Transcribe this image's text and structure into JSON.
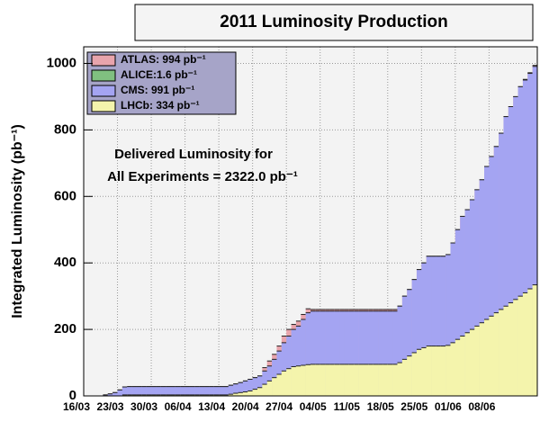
{
  "chart_data": {
    "type": "overlaid-step-area",
    "title": "2011 Luminosity Production",
    "y_label": "Integrated Luminosity (pb⁻¹)",
    "annotation": [
      "Delivered Luminosity for",
      "All Experiments = 2322.0 pb⁻¹"
    ],
    "categories": [
      "16/03",
      null,
      null,
      null,
      null,
      null,
      null,
      "23/03",
      null,
      null,
      null,
      null,
      null,
      null,
      "30/03",
      null,
      null,
      null,
      null,
      null,
      null,
      "06/04",
      null,
      null,
      null,
      null,
      null,
      null,
      "13/04",
      null,
      null,
      null,
      null,
      null,
      null,
      "20/04",
      null,
      null,
      null,
      null,
      null,
      null,
      "27/04",
      null,
      null,
      null,
      null,
      null,
      null,
      "04/05",
      null,
      null,
      null,
      null,
      null,
      null,
      "11/05",
      null,
      null,
      null,
      null,
      null,
      null,
      "18/05",
      null,
      null,
      null,
      null,
      null,
      null,
      "25/05",
      null,
      null,
      null,
      null,
      null,
      null,
      "01/06",
      null,
      null,
      null,
      null,
      null,
      null,
      "08/06",
      null,
      null,
      null,
      null,
      null,
      null,
      null,
      null,
      null
    ],
    "series": [
      {
        "name": "ATLAS: 994 pb⁻¹",
        "color": "#e8a4ac",
        "values": [
          0,
          0,
          0,
          0,
          3,
          6,
          10,
          18,
          27,
          28,
          28,
          28,
          28,
          28,
          28,
          28,
          28,
          28,
          28,
          28,
          28,
          28,
          28,
          28,
          28,
          28,
          28,
          28,
          28,
          28,
          32,
          36,
          40,
          45,
          50,
          55,
          60,
          85,
          105,
          125,
          150,
          180,
          200,
          215,
          225,
          245,
          262,
          260,
          260,
          260,
          260,
          260,
          260,
          260,
          260,
          260,
          260,
          260,
          260,
          260,
          260,
          260,
          260,
          260,
          260,
          270,
          300,
          320,
          350,
          380,
          400,
          420,
          420,
          420,
          420,
          425,
          460,
          500,
          540,
          560,
          590,
          620,
          650,
          690,
          720,
          750,
          790,
          840,
          870,
          900,
          930,
          952,
          972,
          994
        ]
      },
      {
        "name": "ALICE:1.6 pb⁻¹",
        "color": "#80c080",
        "values": [
          0,
          0,
          0,
          0,
          0,
          0,
          0,
          0,
          0,
          0,
          0,
          0,
          0,
          0,
          0,
          0,
          0,
          0,
          0,
          0,
          0,
          0,
          0,
          0,
          0,
          0,
          0,
          0,
          0,
          0,
          0.2,
          0.2,
          0.2,
          0.2,
          0.2,
          0.2,
          0.2,
          0.2,
          0.2,
          0.2,
          0.2,
          0.2,
          0.2,
          0.2,
          0.2,
          0.2,
          0.2,
          0.2,
          0.2,
          0.2,
          0.2,
          0.2,
          0.2,
          0.2,
          0.2,
          0.2,
          0.2,
          0.2,
          0.2,
          0.2,
          0.2,
          0.2,
          0.2,
          0.2,
          0.2,
          0.4,
          0.4,
          0.4,
          0.4,
          0.4,
          0.4,
          0.4,
          0.4,
          0.4,
          0.4,
          0.4,
          0.4,
          0.4,
          0.4,
          0.4,
          0.6,
          0.7,
          0.8,
          0.9,
          1.0,
          1.0,
          1.1,
          1.2,
          1.3,
          1.4,
          1.4,
          1.5,
          1.5,
          1.6
        ]
      },
      {
        "name": "CMS: 991 pb⁻¹",
        "color": "#a4a4f2",
        "values": [
          0,
          0,
          0,
          0,
          3,
          6,
          10,
          18,
          27,
          28,
          28,
          28,
          28,
          28,
          28,
          28,
          28,
          28,
          28,
          28,
          28,
          28,
          28,
          28,
          28,
          28,
          28,
          28,
          28,
          28,
          32,
          36,
          40,
          45,
          50,
          55,
          60,
          75,
          90,
          110,
          135,
          160,
          180,
          200,
          210,
          230,
          250,
          255,
          255,
          255,
          255,
          255,
          255,
          255,
          255,
          255,
          255,
          255,
          255,
          255,
          255,
          255,
          255,
          255,
          255,
          270,
          300,
          320,
          350,
          380,
          400,
          420,
          420,
          420,
          420,
          425,
          460,
          500,
          540,
          560,
          590,
          620,
          650,
          690,
          720,
          750,
          790,
          840,
          870,
          900,
          930,
          950,
          970,
          991
        ]
      },
      {
        "name": "LHCb: 334 pb⁻¹",
        "color": "#f4f4ac",
        "values": [
          0,
          0,
          0,
          0,
          0,
          0,
          0,
          0,
          3,
          3,
          3,
          3,
          3,
          3,
          3,
          3,
          3,
          3,
          3,
          3,
          3,
          3,
          3,
          3,
          3,
          3,
          3,
          3,
          3,
          3,
          5,
          8,
          10,
          12,
          15,
          20,
          25,
          35,
          45,
          55,
          65,
          75,
          82,
          88,
          90,
          92,
          94,
          95,
          95,
          95,
          95,
          95,
          95,
          95,
          95,
          95,
          95,
          95,
          95,
          95,
          95,
          95,
          95,
          95,
          95,
          100,
          110,
          120,
          130,
          140,
          145,
          150,
          150,
          150,
          150,
          152,
          160,
          170,
          180,
          190,
          200,
          210,
          220,
          230,
          240,
          250,
          260,
          270,
          280,
          290,
          300,
          310,
          322,
          334
        ]
      }
    ],
    "ylim": [
      0,
      1050
    ],
    "yticks": [
      0,
      200,
      400,
      600,
      800,
      1000
    ],
    "grid": true
  }
}
